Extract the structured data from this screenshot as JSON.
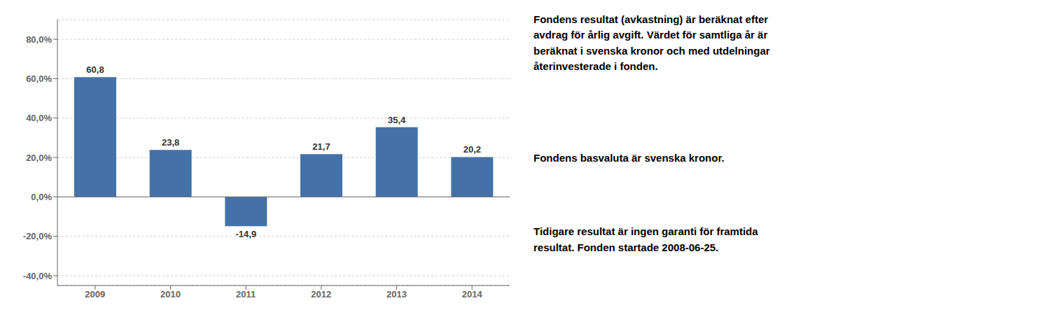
{
  "chart_data": {
    "type": "bar",
    "categories": [
      "2009",
      "2010",
      "2011",
      "2012",
      "2013",
      "2014"
    ],
    "values": [
      60.8,
      23.8,
      -14.9,
      21.7,
      35.4,
      20.2
    ],
    "value_labels": [
      "60,8",
      "23,8",
      "-14,9",
      "21,7",
      "35,4",
      "20,2"
    ],
    "data_labels": true,
    "color": "#4472a8",
    "ylim": [
      -45,
      90
    ],
    "yticks": [
      {
        "value": -40,
        "label": "-40,0%"
      },
      {
        "value": -20,
        "label": "-20,0%"
      },
      {
        "value": 0,
        "label": "0,0%"
      },
      {
        "value": 20,
        "label": "20,0%"
      },
      {
        "value": 40,
        "label": "40,0%"
      },
      {
        "value": 60,
        "label": "60,0%"
      },
      {
        "value": 80,
        "label": "80,0%"
      }
    ],
    "grid": true,
    "annotations": [
      "Fondens resultat (avkastning) är beräknat efter\navdrag för årlig avgift. Värdet för samtliga år är\nberäknat i svenska kronor och med utdelningar\nåterinvesterade i fonden.",
      "Fondens basvaluta är svenska kronor.",
      "Tidigare resultat är ingen garanti för framtida\nresultat. Fonden startade 2008-06-25."
    ]
  }
}
